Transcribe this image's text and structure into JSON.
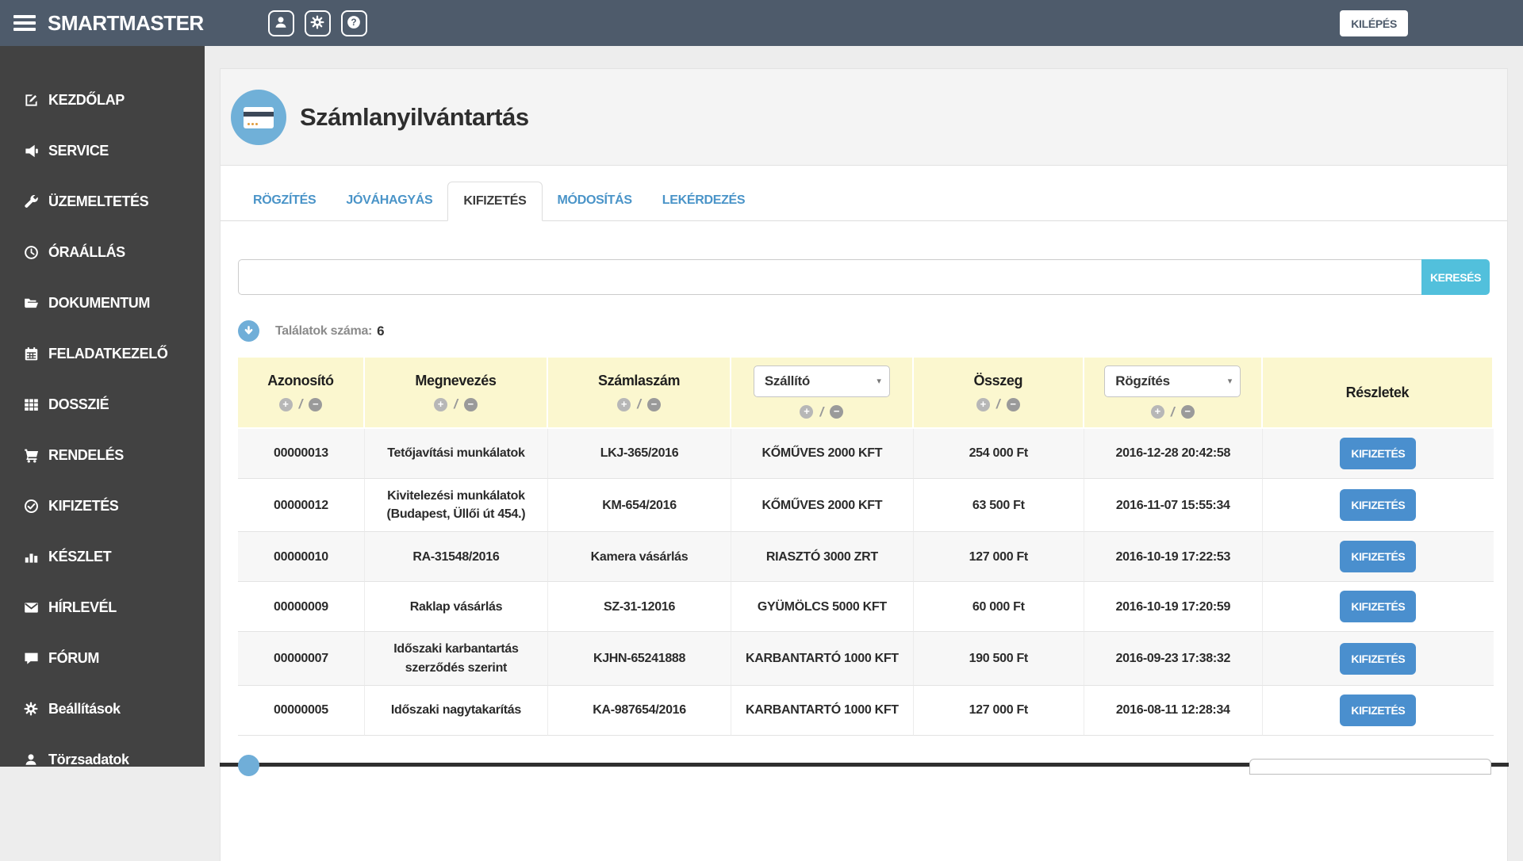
{
  "header": {
    "app_title": "SMARTMASTER",
    "logout_label": "KILÉPÉS",
    "icon_buttons": [
      {
        "key": "profile",
        "icon": "user"
      },
      {
        "key": "settings",
        "icon": "gear"
      },
      {
        "key": "help",
        "icon": "question"
      }
    ]
  },
  "sidebar": {
    "items": [
      {
        "key": "kezdolap",
        "label": "KEZDŐLAP",
        "icon": "edit"
      },
      {
        "key": "service",
        "label": "SERVICE",
        "icon": "megaphone"
      },
      {
        "key": "uzemeltetes",
        "label": "ÜZEMELTETÉS",
        "icon": "wrench"
      },
      {
        "key": "oraallas",
        "label": "ÓRAÁLLÁS",
        "icon": "clock"
      },
      {
        "key": "dokumentum",
        "label": "DOKUMENTUM",
        "icon": "folder-open"
      },
      {
        "key": "feladatkezelo",
        "label": "FELADATKEZELŐ",
        "icon": "calendar"
      },
      {
        "key": "dosszie",
        "label": "DOSSZIÉ",
        "icon": "grid"
      },
      {
        "key": "rendeles",
        "label": "RENDELÉS",
        "icon": "cart"
      },
      {
        "key": "kifizetes",
        "label": "KIFIZETÉS",
        "icon": "check-circle"
      },
      {
        "key": "keszlet",
        "label": "KÉSZLET",
        "icon": "bar-chart"
      },
      {
        "key": "hirlevel",
        "label": "HÍRLEVÉL",
        "icon": "envelope"
      },
      {
        "key": "forum",
        "label": "FÓRUM",
        "icon": "comment"
      },
      {
        "key": "beallitasok",
        "label": "Beállítások",
        "icon": "gear"
      },
      {
        "key": "torzsadatok",
        "label": "Törzsadatok",
        "icon": "user"
      }
    ]
  },
  "page": {
    "title": "Számlanyilvántartás",
    "tabs": [
      {
        "key": "rogzites",
        "label": "RÖGZÍTÉS",
        "active": false
      },
      {
        "key": "jovahagyas",
        "label": "JÓVÁHAGYÁS",
        "active": false
      },
      {
        "key": "kifizetes",
        "label": "KIFIZETÉS",
        "active": true
      },
      {
        "key": "modositas",
        "label": "MÓDOSÍTÁS",
        "active": false
      },
      {
        "key": "lekerdezes",
        "label": "LEKÉRDEZÉS",
        "active": false
      }
    ],
    "search": {
      "value": "",
      "button_label": "KERESÉS"
    },
    "results": {
      "label": "Találatok száma:",
      "count": "6"
    }
  },
  "table": {
    "columns": [
      {
        "key": "azonosito",
        "label": "Azonosító",
        "type": "sort",
        "width": "10.1%"
      },
      {
        "key": "megnevezes",
        "label": "Megnevezés",
        "type": "sort",
        "width": "14.6%"
      },
      {
        "key": "szamlaszam",
        "label": "Számlaszám",
        "type": "sort",
        "width": "14.6%"
      },
      {
        "key": "szallito",
        "label": "Szállító",
        "type": "select",
        "width": "14.5%"
      },
      {
        "key": "osszeg",
        "label": "Összeg",
        "type": "sort",
        "width": "13.6%"
      },
      {
        "key": "rogzites",
        "label": "Rögzítés",
        "type": "select",
        "width": "14.2%"
      },
      {
        "key": "reszletek",
        "label": "Részletek",
        "type": "plain",
        "width": "18.4%"
      }
    ],
    "sort_plus": "+",
    "sort_minus": "−",
    "sort_separator": "/",
    "select_caret": "▾",
    "row_action_label": "KIFIZETÉS",
    "rows": [
      [
        "00000013",
        "Tetőjavítási munkálatok",
        "LKJ-365/2016",
        "KŐMŰVES 2000 KFT",
        "254 000 Ft",
        "2016-12-28 20:42:58"
      ],
      [
        "00000012",
        "Kivitelezési munkálatok (Budapest, Üllői út 454.)",
        "KM-654/2016",
        "KŐMŰVES 2000 KFT",
        "63 500 Ft",
        "2016-11-07 15:55:34"
      ],
      [
        "00000010",
        "RA-31548/2016",
        "Kamera vásárlás",
        "RIASZTÓ 3000 ZRT",
        "127 000 Ft",
        "2016-10-19 17:22:53"
      ],
      [
        "00000009",
        "Raklap vásárlás",
        "SZ-31-12016",
        "GYÜMÖLCS 5000 KFT",
        "60 000 Ft",
        "2016-10-19 17:20:59"
      ],
      [
        "00000007",
        "Időszaki karbantartás szerződés szerint",
        "KJHN-65241888",
        "KARBANTARTÓ 1000 KFT",
        "190 500 Ft",
        "2016-09-23 17:38:32"
      ],
      [
        "00000005",
        "Időszaki nagytakarítás",
        "KA-987654/2016",
        "KARBANTARTÓ 1000 KFT",
        "127 000 Ft",
        "2016-08-11 12:28:34"
      ]
    ]
  },
  "colors": {
    "topbar": "#4e5b6b",
    "sidebar": "#424242",
    "accent_blue": "#4a94c8",
    "title_circle_blue": "#70b0d8",
    "search_button_cyan": "#52c0dc",
    "table_header_yellow": "#fbf7cf",
    "row_action_blue": "#4a8fce"
  }
}
